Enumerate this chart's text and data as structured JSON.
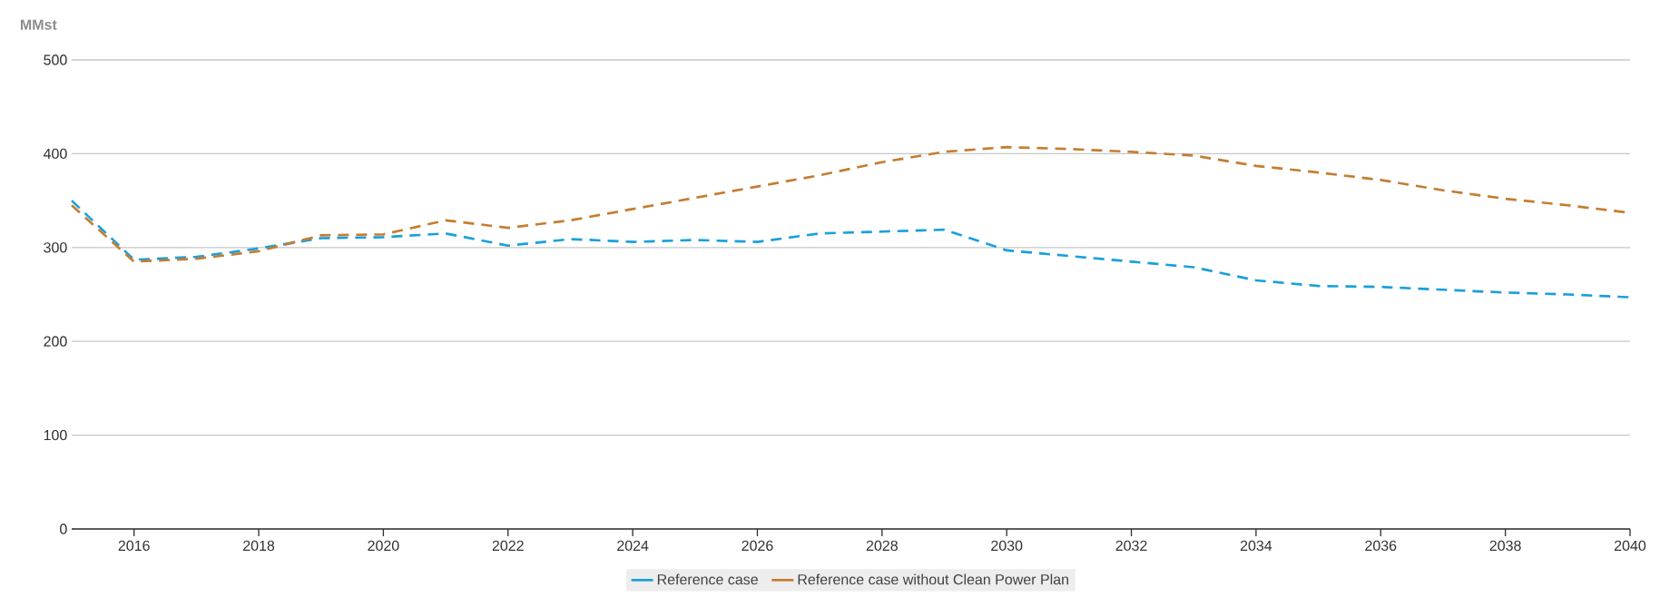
{
  "chart_data": {
    "type": "line",
    "ylabel": "MMst",
    "x": [
      2015,
      2016,
      2017,
      2018,
      2019,
      2020,
      2021,
      2022,
      2023,
      2024,
      2025,
      2026,
      2027,
      2028,
      2029,
      2030,
      2031,
      2032,
      2033,
      2034,
      2035,
      2036,
      2037,
      2038,
      2039,
      2040
    ],
    "series": [
      {
        "name": "Reference case",
        "color": "#1a9fdc",
        "values": [
          350,
          287,
          290,
          299,
          310,
          311,
          315,
          302,
          309,
          306,
          308,
          306,
          315,
          317,
          319,
          297,
          291,
          285,
          279,
          265,
          259,
          258,
          255,
          252,
          250,
          247
        ]
      },
      {
        "name": "Reference case without Clean Power Plan",
        "color": "#c47d32",
        "values": [
          345,
          285,
          288,
          296,
          313,
          314,
          329,
          321,
          329,
          341,
          353,
          365,
          377,
          391,
          402,
          407,
          405,
          402,
          398,
          387,
          380,
          372,
          361,
          352,
          345,
          337
        ]
      }
    ],
    "xlim": [
      2015,
      2040
    ],
    "xticks": [
      2016,
      2018,
      2020,
      2022,
      2024,
      2026,
      2028,
      2030,
      2032,
      2034,
      2036,
      2038,
      2040
    ],
    "ylim": [
      0,
      500
    ],
    "yticks": [
      0,
      100,
      200,
      300,
      400,
      500
    ],
    "grid": "y",
    "legend": "bottom",
    "line_style": "dashed"
  }
}
